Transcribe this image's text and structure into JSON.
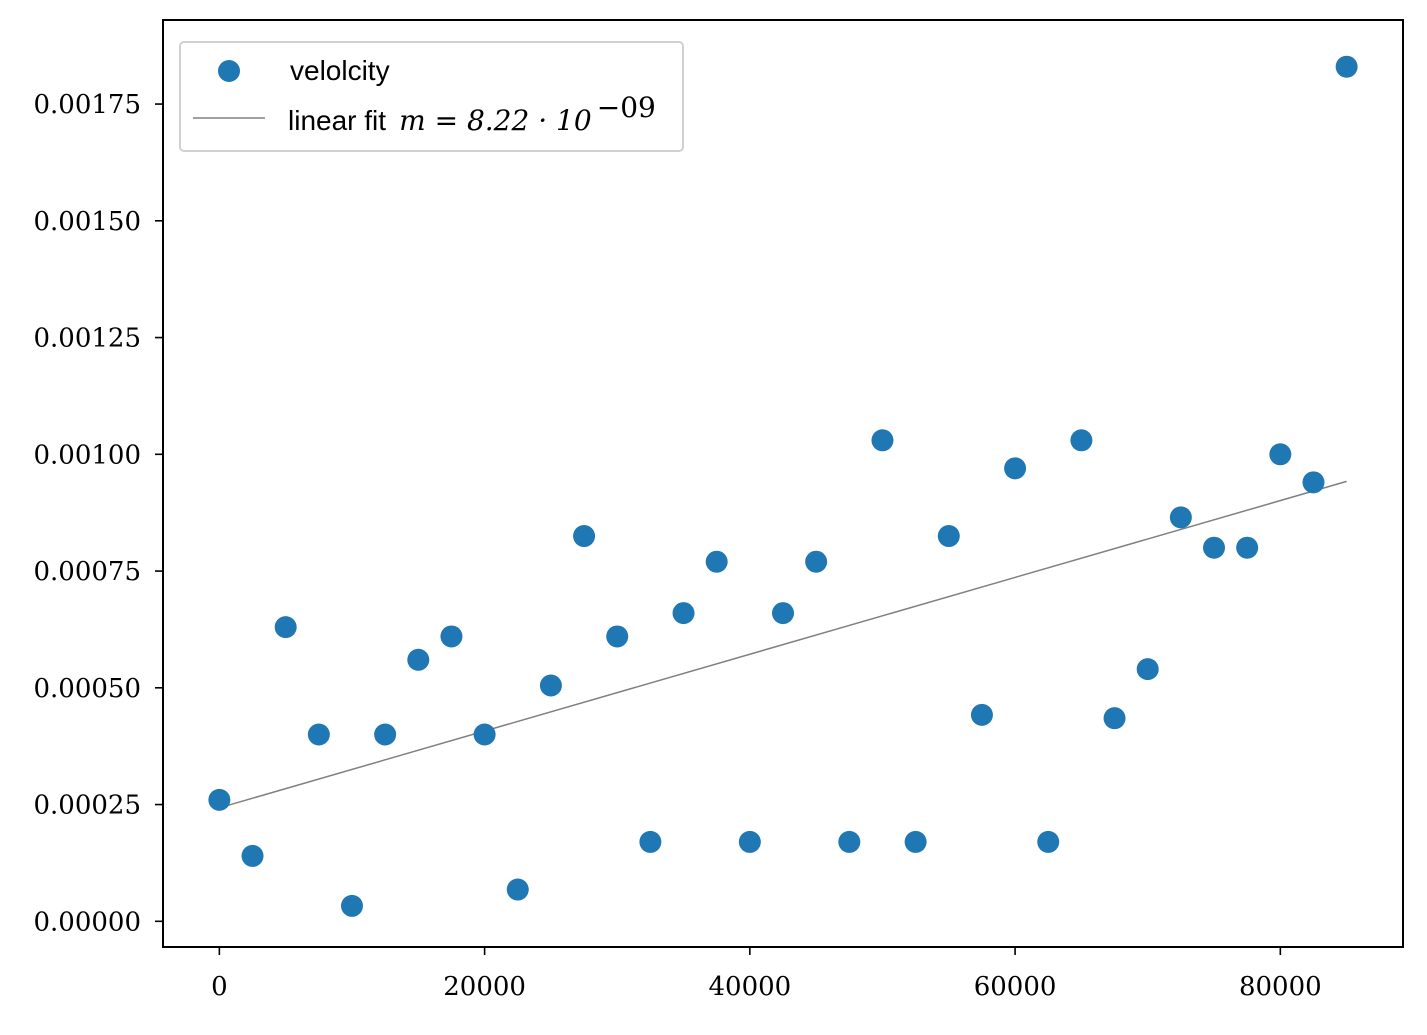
{
  "chart_data": {
    "type": "scatter",
    "title": "",
    "xlabel": "",
    "ylabel": "",
    "xlim": [
      -4250,
      89250
    ],
    "ylim": [
      -5.5e-05,
      0.00193
    ],
    "xticks": [
      0,
      20000,
      40000,
      60000,
      80000
    ],
    "xtick_labels": [
      "0",
      "20000",
      "40000",
      "60000",
      "80000"
    ],
    "yticks": [
      0,
      0.00025,
      0.0005,
      0.00075,
      0.001,
      0.00125,
      0.0015,
      0.00175
    ],
    "ytick_labels": [
      "0.00000",
      "0.00025",
      "0.00050",
      "0.00075",
      "0.00100",
      "0.00125",
      "0.00150",
      "0.00175"
    ],
    "grid": false,
    "legend_position": "top-left",
    "series": [
      {
        "name": "velolcity",
        "kind": "scatter",
        "color": "#1f77b4",
        "x": [
          0,
          2500,
          5000,
          7500,
          10000,
          12500,
          15000,
          17500,
          20000,
          22500,
          25000,
          27500,
          30000,
          32500,
          35000,
          37500,
          40000,
          42500,
          45000,
          47500,
          50000,
          52500,
          55000,
          57500,
          60000,
          62500,
          65000,
          67500,
          70000,
          72500,
          75000,
          77500,
          80000,
          82500,
          85000
        ],
        "y": [
          0.00026,
          0.00014,
          0.00063,
          0.0004,
          3.3e-05,
          0.0004,
          0.00056,
          0.00061,
          0.0004,
          6.8e-05,
          0.000505,
          0.000825,
          0.00061,
          0.00017,
          0.00066,
          0.00077,
          0.00017,
          0.00066,
          0.00077,
          0.00017,
          0.00103,
          0.00017,
          0.000825,
          0.000442,
          0.00097,
          0.00017,
          0.00103,
          0.000435,
          0.00054,
          0.000865,
          0.0008,
          0.0008,
          0.001,
          0.00094,
          0.00183
        ]
      },
      {
        "name": "linear fit",
        "name_math": "m = 8.22 · 10",
        "name_math_exponent": "−09",
        "kind": "line",
        "color": "#808080",
        "slope": 8.22e-09,
        "x": [
          0,
          85000
        ],
        "y": [
          0.000243,
          0.000942
        ]
      }
    ]
  }
}
